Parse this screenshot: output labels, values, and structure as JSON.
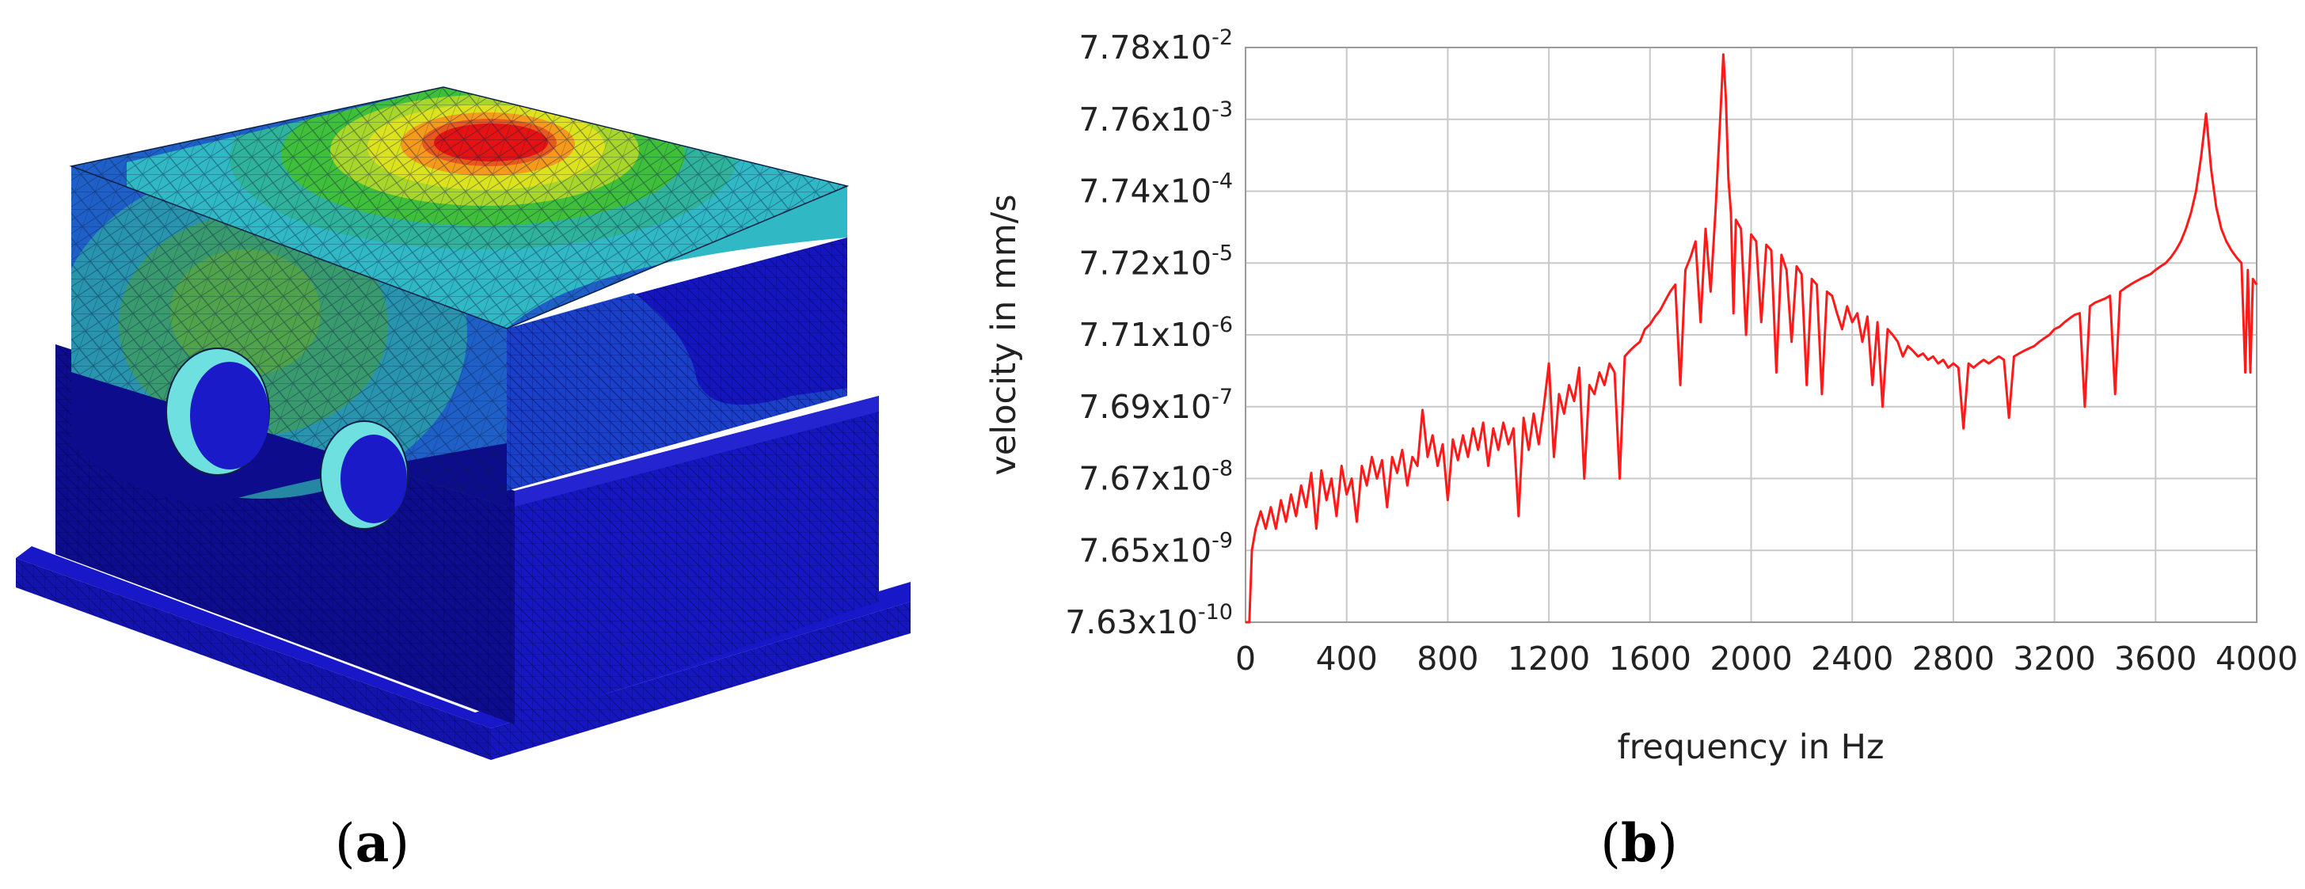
{
  "panels": {
    "a": {
      "open": "(",
      "letter": "a",
      "close": ")"
    },
    "b": {
      "open": "(",
      "letter": "b",
      "close": ")"
    }
  },
  "fem_model": {
    "colors": {
      "max": "#e41212",
      "orange": "#f59a1b",
      "yellow": "#dce21e",
      "green": "#3fbf3a",
      "cyan": "#30b8c4",
      "teal": "#2a9ea8",
      "mid_blue": "#1f60c8",
      "min": "#1212c8",
      "dark": "#0c0c8c",
      "mesh": "#0b1f45"
    }
  },
  "chart_data": {
    "type": "line",
    "title": "",
    "xlabel": "frequency in Hz",
    "ylabel": "velocity in mm/s",
    "x_ticks": [
      "0",
      "400",
      "800",
      "1200",
      "1600",
      "2000",
      "2400",
      "2800",
      "3200",
      "3600",
      "4000"
    ],
    "xlim": [
      0,
      4000
    ],
    "y_ticks": [
      {
        "mantissa": "7.63x10",
        "exponent": "-10"
      },
      {
        "mantissa": "7.65x10",
        "exponent": "-9"
      },
      {
        "mantissa": "7.67x10",
        "exponent": "-8"
      },
      {
        "mantissa": "7.69x10",
        "exponent": "-7"
      },
      {
        "mantissa": "7.71x10",
        "exponent": "-6"
      },
      {
        "mantissa": "7.72x10",
        "exponent": "-5"
      },
      {
        "mantissa": "7.74x10",
        "exponent": "-4"
      },
      {
        "mantissa": "7.76x10",
        "exponent": "-3"
      },
      {
        "mantissa": "7.78x10",
        "exponent": "-2"
      }
    ],
    "y_scale": "log",
    "ylim": [
      1e-10,
      0.01
    ],
    "grid": true,
    "series": [
      {
        "color": "#ff1a1a",
        "points": [
          [
            0,
            1e-10
          ],
          [
            15,
            1e-10
          ],
          [
            25,
            1e-09
          ],
          [
            40,
            2e-09
          ],
          [
            60,
            3.5e-09
          ],
          [
            80,
            2e-09
          ],
          [
            100,
            4e-09
          ],
          [
            120,
            2e-09
          ],
          [
            140,
            5e-09
          ],
          [
            160,
            2.5e-09
          ],
          [
            180,
            6e-09
          ],
          [
            200,
            3e-09
          ],
          [
            220,
            8e-09
          ],
          [
            240,
            4e-09
          ],
          [
            260,
            1.2e-08
          ],
          [
            280,
            2e-09
          ],
          [
            300,
            1.3e-08
          ],
          [
            320,
            5e-09
          ],
          [
            340,
            1e-08
          ],
          [
            360,
            3e-09
          ],
          [
            380,
            1.5e-08
          ],
          [
            400,
            6e-09
          ],
          [
            420,
            1e-08
          ],
          [
            440,
            2.5e-09
          ],
          [
            460,
            1.5e-08
          ],
          [
            480,
            8e-09
          ],
          [
            500,
            2e-08
          ],
          [
            520,
            1e-08
          ],
          [
            540,
            1.8e-08
          ],
          [
            560,
            4e-09
          ],
          [
            580,
            2e-08
          ],
          [
            600,
            1.2e-08
          ],
          [
            620,
            2.5e-08
          ],
          [
            640,
            8e-09
          ],
          [
            660,
            2e-08
          ],
          [
            680,
            1.5e-08
          ],
          [
            700,
            9e-08
          ],
          [
            720,
            2e-08
          ],
          [
            740,
            4e-08
          ],
          [
            760,
            1.5e-08
          ],
          [
            780,
            3e-08
          ],
          [
            800,
            5e-09
          ],
          [
            820,
            3.5e-08
          ],
          [
            840,
            1.8e-08
          ],
          [
            860,
            4e-08
          ],
          [
            880,
            2e-08
          ],
          [
            900,
            5e-08
          ],
          [
            920,
            2.5e-08
          ],
          [
            940,
            6e-08
          ],
          [
            960,
            1.5e-08
          ],
          [
            980,
            5e-08
          ],
          [
            1000,
            2.5e-08
          ],
          [
            1020,
            6e-08
          ],
          [
            1040,
            3e-08
          ],
          [
            1060,
            5e-08
          ],
          [
            1080,
            3e-09
          ],
          [
            1100,
            7e-08
          ],
          [
            1120,
            2.5e-08
          ],
          [
            1140,
            8e-08
          ],
          [
            1160,
            3e-08
          ],
          [
            1180,
            1e-07
          ],
          [
            1200,
            4e-07
          ],
          [
            1220,
            2e-08
          ],
          [
            1240,
            1.5e-07
          ],
          [
            1260,
            8e-08
          ],
          [
            1280,
            2e-07
          ],
          [
            1300,
            1.2e-07
          ],
          [
            1320,
            3.5e-07
          ],
          [
            1340,
            1e-08
          ],
          [
            1360,
            2e-07
          ],
          [
            1380,
            1.5e-07
          ],
          [
            1400,
            3e-07
          ],
          [
            1420,
            2e-07
          ],
          [
            1440,
            4e-07
          ],
          [
            1460,
            3e-07
          ],
          [
            1480,
            1e-08
          ],
          [
            1500,
            5e-07
          ],
          [
            1520,
            6e-07
          ],
          [
            1540,
            7e-07
          ],
          [
            1560,
            8e-07
          ],
          [
            1580,
            1.2e-06
          ],
          [
            1600,
            1.4e-06
          ],
          [
            1620,
            1.8e-06
          ],
          [
            1640,
            2.2e-06
          ],
          [
            1660,
            3e-06
          ],
          [
            1680,
            4e-06
          ],
          [
            1700,
            5e-06
          ],
          [
            1720,
            2e-07
          ],
          [
            1740,
            8e-06
          ],
          [
            1760,
            1.2e-05
          ],
          [
            1780,
            2e-05
          ],
          [
            1800,
            1.5e-06
          ],
          [
            1820,
            3e-05
          ],
          [
            1840,
            4e-06
          ],
          [
            1860,
            6e-05
          ],
          [
            1880,
            0.0015
          ],
          [
            1890,
            0.008
          ],
          [
            1900,
            0.002
          ],
          [
            1910,
            0.00015
          ],
          [
            1920,
            5e-05
          ],
          [
            1930,
            2e-06
          ],
          [
            1940,
            4e-05
          ],
          [
            1960,
            3e-05
          ],
          [
            1980,
            1e-06
          ],
          [
            2000,
            2.5e-05
          ],
          [
            2020,
            2e-05
          ],
          [
            2040,
            1.5e-06
          ],
          [
            2060,
            1.8e-05
          ],
          [
            2080,
            1.5e-05
          ],
          [
            2100,
            3e-07
          ],
          [
            2120,
            1.3e-05
          ],
          [
            2140,
            8e-06
          ],
          [
            2160,
            8e-07
          ],
          [
            2180,
            9e-06
          ],
          [
            2200,
            7e-06
          ],
          [
            2220,
            2e-07
          ],
          [
            2240,
            6e-06
          ],
          [
            2260,
            5e-06
          ],
          [
            2280,
            1.5e-07
          ],
          [
            2300,
            4e-06
          ],
          [
            2320,
            3.5e-06
          ],
          [
            2340,
            2e-06
          ],
          [
            2360,
            1.2e-06
          ],
          [
            2380,
            2.5e-06
          ],
          [
            2400,
            1.5e-06
          ],
          [
            2420,
            2e-06
          ],
          [
            2440,
            8e-07
          ],
          [
            2460,
            1.8e-06
          ],
          [
            2480,
            2e-07
          ],
          [
            2500,
            1.5e-06
          ],
          [
            2520,
            1e-07
          ],
          [
            2540,
            1.2e-06
          ],
          [
            2560,
            1e-06
          ],
          [
            2580,
            8e-07
          ],
          [
            2600,
            5e-07
          ],
          [
            2620,
            7e-07
          ],
          [
            2640,
            6e-07
          ],
          [
            2660,
            5e-07
          ],
          [
            2680,
            5.5e-07
          ],
          [
            2700,
            4.5e-07
          ],
          [
            2720,
            5e-07
          ],
          [
            2740,
            4e-07
          ],
          [
            2760,
            4.5e-07
          ],
          [
            2780,
            3.5e-07
          ],
          [
            2800,
            4e-07
          ],
          [
            2820,
            3.5e-07
          ],
          [
            2840,
            5e-08
          ],
          [
            2860,
            4e-07
          ],
          [
            2880,
            3.5e-07
          ],
          [
            2900,
            4e-07
          ],
          [
            2920,
            4.5e-07
          ],
          [
            2940,
            4e-07
          ],
          [
            2960,
            4.5e-07
          ],
          [
            2980,
            5e-07
          ],
          [
            3000,
            4.5e-07
          ],
          [
            3020,
            7e-08
          ],
          [
            3040,
            5e-07
          ],
          [
            3060,
            5.5e-07
          ],
          [
            3080,
            6e-07
          ],
          [
            3100,
            6.5e-07
          ],
          [
            3120,
            7e-07
          ],
          [
            3140,
            8e-07
          ],
          [
            3160,
            9e-07
          ],
          [
            3180,
            1e-06
          ],
          [
            3200,
            1.2e-06
          ],
          [
            3220,
            1.3e-06
          ],
          [
            3240,
            1.5e-06
          ],
          [
            3260,
            1.7e-06
          ],
          [
            3280,
            1.9e-06
          ],
          [
            3300,
            2e-06
          ],
          [
            3320,
            1e-07
          ],
          [
            3340,
            2.5e-06
          ],
          [
            3360,
            2.8e-06
          ],
          [
            3380,
            3e-06
          ],
          [
            3400,
            3.2e-06
          ],
          [
            3420,
            3.5e-06
          ],
          [
            3440,
            1.5e-07
          ],
          [
            3460,
            4e-06
          ],
          [
            3480,
            4.5e-06
          ],
          [
            3500,
            5e-06
          ],
          [
            3520,
            5.5e-06
          ],
          [
            3540,
            6e-06
          ],
          [
            3560,
            6.5e-06
          ],
          [
            3580,
            7e-06
          ],
          [
            3600,
            8e-06
          ],
          [
            3620,
            9e-06
          ],
          [
            3640,
            1e-05
          ],
          [
            3660,
            1.2e-05
          ],
          [
            3680,
            1.5e-05
          ],
          [
            3700,
            2e-05
          ],
          [
            3720,
            3e-05
          ],
          [
            3740,
            5e-05
          ],
          [
            3760,
            0.0001
          ],
          [
            3780,
            0.0003
          ],
          [
            3800,
            0.0012
          ],
          [
            3820,
            0.0002
          ],
          [
            3840,
            6e-05
          ],
          [
            3860,
            3e-05
          ],
          [
            3880,
            2e-05
          ],
          [
            3900,
            1.5e-05
          ],
          [
            3920,
            1.2e-05
          ],
          [
            3940,
            1e-05
          ],
          [
            3955,
            3e-07
          ],
          [
            3965,
            8e-06
          ],
          [
            3975,
            3e-07
          ],
          [
            3985,
            6e-06
          ],
          [
            4000,
            5e-06
          ]
        ]
      }
    ]
  }
}
